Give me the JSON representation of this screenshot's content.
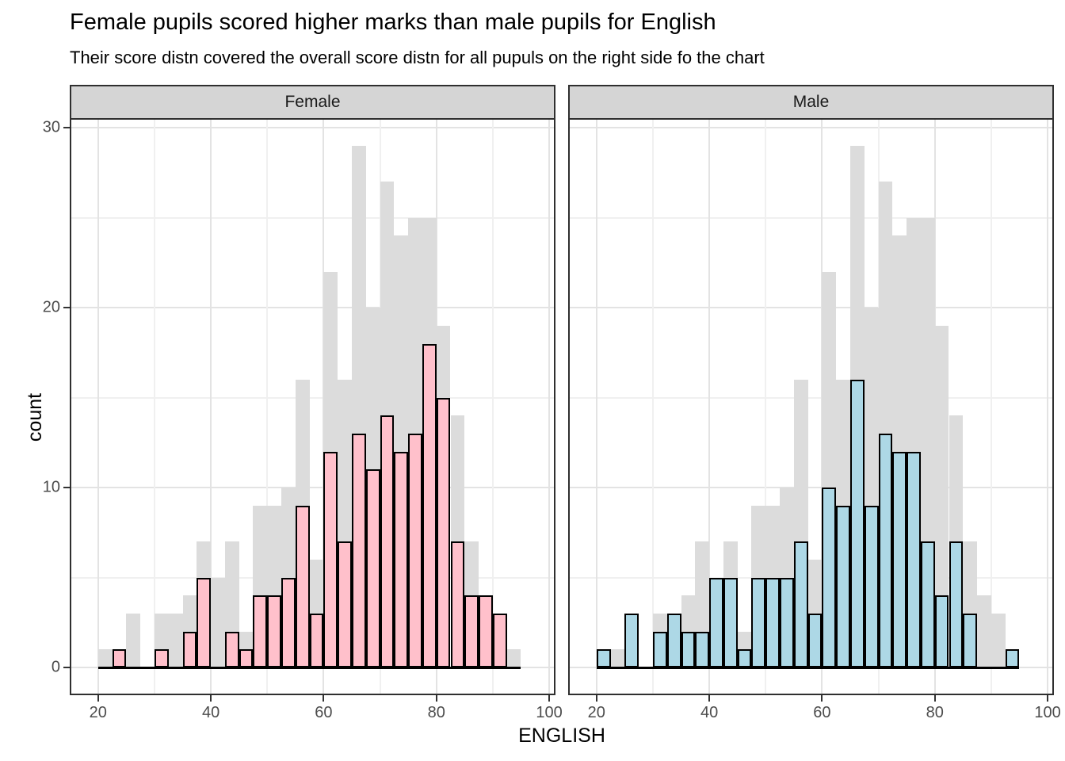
{
  "title": "Female pupils scored higher marks than male pupils for English",
  "subtitle": "Their score distn covered the overall score distn for all pupuls on the right side fo the chart",
  "x_axis": {
    "label": "ENGLISH",
    "ticks": [
      20,
      40,
      60,
      80,
      100
    ]
  },
  "y_axis": {
    "label": "count",
    "ticks": [
      0,
      10,
      20,
      30
    ]
  },
  "facets": [
    {
      "label": "Female"
    },
    {
      "label": "Male"
    }
  ],
  "colors": {
    "female_fill": "#ffc0cb",
    "male_fill": "#add8e6",
    "overall_fill": "#dcdcdc",
    "bar_outline": "#000000",
    "axis_text": "#4d4d4d",
    "strip_background": "#d5d5d5",
    "panel_border": "#2f2f2f",
    "grid_major": "#e3e3e3",
    "grid_minor": "#f0f0f0"
  },
  "chart_data": {
    "type": "bar",
    "subtype": "faceted histogram with overall distribution in background",
    "bin_width": 2.5,
    "bin_starts": [
      20,
      22.5,
      25,
      27.5,
      30,
      32.5,
      35,
      37.5,
      40,
      42.5,
      45,
      47.5,
      50,
      52.5,
      55,
      57.5,
      60,
      62.5,
      65,
      67.5,
      70,
      72.5,
      75,
      77.5,
      80,
      82.5,
      85,
      87.5,
      90,
      92.5
    ],
    "series": [
      {
        "name": "overall",
        "facet": "both",
        "color": "#dcdcdc",
        "outline": false,
        "values": [
          1,
          1,
          3,
          0,
          3,
          3,
          4,
          7,
          5,
          7,
          2,
          9,
          9,
          10,
          16,
          6,
          22,
          16,
          29,
          20,
          27,
          24,
          25,
          25,
          19,
          14,
          7,
          4,
          3,
          1
        ]
      },
      {
        "name": "Female",
        "facet": "Female",
        "color": "#ffc0cb",
        "outline": true,
        "values": [
          0,
          1,
          0,
          0,
          1,
          0,
          2,
          5,
          0,
          2,
          1,
          4,
          4,
          5,
          9,
          3,
          12,
          7,
          13,
          11,
          14,
          12,
          13,
          18,
          15,
          7,
          4,
          4,
          3,
          0
        ]
      },
      {
        "name": "Male",
        "facet": "Male",
        "color": "#add8e6",
        "outline": true,
        "values": [
          1,
          0,
          3,
          0,
          2,
          3,
          2,
          2,
          5,
          5,
          1,
          5,
          5,
          5,
          7,
          3,
          10,
          9,
          16,
          9,
          13,
          12,
          12,
          7,
          4,
          7,
          3,
          0,
          0,
          1
        ]
      }
    ],
    "title": "Female pupils scored higher marks than male pupils for English",
    "subtitle": "Their score distn covered the overall score distn for all pupuls on the right side fo the chart",
    "xlabel": "ENGLISH",
    "ylabel": "count",
    "xlim": [
      15.25,
      100.84
    ],
    "ylim": [
      -1.45,
      30.45
    ],
    "x_major_gridlines": [
      20,
      40,
      60,
      80,
      100
    ],
    "x_minor_gridlines": [
      30,
      50,
      70,
      90
    ],
    "y_major_gridlines": [
      0,
      10,
      20,
      30
    ],
    "y_minor_gridlines": [
      5,
      15,
      25
    ],
    "legend": "none",
    "grid": true
  }
}
